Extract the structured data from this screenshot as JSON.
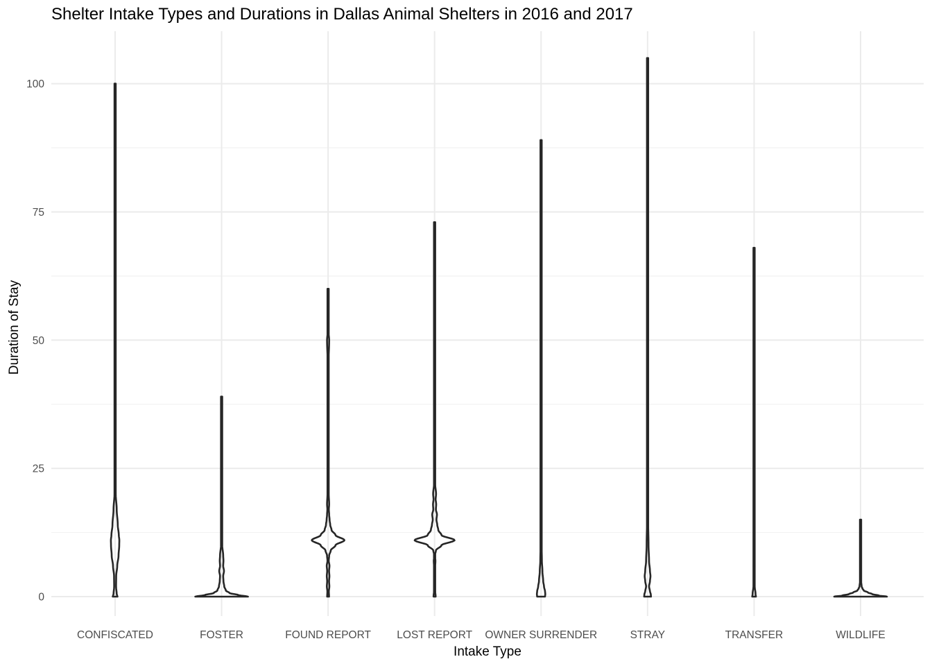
{
  "chart_data": {
    "type": "violin",
    "title": "Shelter Intake Types and Durations in Dallas Animal Shelters in 2016 and 2017",
    "xlabel": "Intake Type",
    "ylabel": "Duration of Stay",
    "ylim": [
      -5,
      110
    ],
    "yticks": [
      0,
      25,
      50,
      75,
      100
    ],
    "grid": true,
    "legend": "none",
    "colors": {
      "outline": "#262626",
      "grid": "#ebebeb",
      "tick_text": "#4d4d4d"
    },
    "categories": [
      "CONFISCATED",
      "FOSTER",
      "FOUND REPORT",
      "LOST REPORT",
      "OWNER SURRENDER",
      "STRAY",
      "TRANSFER",
      "WILDLIFE"
    ],
    "violins": [
      {
        "category": "CONFISCATED",
        "min": 0,
        "max": 100,
        "profile": [
          [
            0,
            0.045
          ],
          [
            0.5,
            0.03
          ],
          [
            2,
            0.018
          ],
          [
            4,
            0.02
          ],
          [
            6,
            0.04
          ],
          [
            8,
            0.065
          ],
          [
            10,
            0.078
          ],
          [
            11,
            0.08
          ],
          [
            12,
            0.07
          ],
          [
            14,
            0.05
          ],
          [
            17,
            0.03
          ],
          [
            20,
            0.012
          ],
          [
            25,
            0.005
          ],
          [
            50,
            0.004
          ],
          [
            75,
            0.003
          ],
          [
            100,
            0.002
          ]
        ]
      },
      {
        "category": "FOSTER",
        "min": 0,
        "max": 39,
        "profile": [
          [
            0,
            0.5
          ],
          [
            0.3,
            0.32
          ],
          [
            0.7,
            0.15
          ],
          [
            1.2,
            0.08
          ],
          [
            2,
            0.05
          ],
          [
            3,
            0.035
          ],
          [
            4,
            0.03
          ],
          [
            5,
            0.045
          ],
          [
            6,
            0.03
          ],
          [
            7,
            0.035
          ],
          [
            8,
            0.03
          ],
          [
            10,
            0.012
          ],
          [
            14,
            0.008
          ],
          [
            20,
            0.004
          ],
          [
            39,
            0.003
          ]
        ]
      },
      {
        "category": "FOUND REPORT",
        "min": 0,
        "max": 60,
        "profile": [
          [
            0,
            0.018
          ],
          [
            1,
            0.014
          ],
          [
            2,
            0.024
          ],
          [
            3,
            0.018
          ],
          [
            4,
            0.025
          ],
          [
            5,
            0.018
          ],
          [
            6,
            0.026
          ],
          [
            7,
            0.012
          ],
          [
            8,
            0.02
          ],
          [
            9,
            0.05
          ],
          [
            10,
            0.14
          ],
          [
            11,
            0.31
          ],
          [
            12,
            0.14
          ],
          [
            13,
            0.065
          ],
          [
            14,
            0.04
          ],
          [
            15,
            0.028
          ],
          [
            16,
            0.02
          ],
          [
            17,
            0.014
          ],
          [
            18,
            0.02
          ],
          [
            20,
            0.012
          ],
          [
            25,
            0.008
          ],
          [
            45,
            0.006
          ],
          [
            50,
            0.02
          ],
          [
            52,
            0.004
          ],
          [
            60,
            0.004
          ]
        ]
      },
      {
        "category": "LOST REPORT",
        "min": 0,
        "max": 73,
        "profile": [
          [
            0,
            0.02
          ],
          [
            1,
            0.012
          ],
          [
            2,
            0.004
          ],
          [
            4,
            0.012
          ],
          [
            5,
            0.004
          ],
          [
            7,
            0.016
          ],
          [
            8,
            0.004
          ],
          [
            9,
            0.025
          ],
          [
            10,
            0.13
          ],
          [
            11,
            0.38
          ],
          [
            12,
            0.13
          ],
          [
            13,
            0.07
          ],
          [
            14,
            0.05
          ],
          [
            15,
            0.035
          ],
          [
            16,
            0.045
          ],
          [
            17,
            0.025
          ],
          [
            18,
            0.03
          ],
          [
            19,
            0.02
          ],
          [
            20,
            0.028
          ],
          [
            22,
            0.01
          ],
          [
            30,
            0.005
          ],
          [
            50,
            0.004
          ],
          [
            73,
            0.003
          ]
        ]
      },
      {
        "category": "OWNER SURRENDER",
        "min": 0,
        "max": 89,
        "profile": [
          [
            0,
            0.075
          ],
          [
            0.5,
            0.08
          ],
          [
            1,
            0.075
          ],
          [
            2,
            0.055
          ],
          [
            3,
            0.04
          ],
          [
            5,
            0.025
          ],
          [
            7,
            0.015
          ],
          [
            10,
            0.01
          ],
          [
            15,
            0.006
          ],
          [
            30,
            0.004
          ],
          [
            60,
            0.003
          ],
          [
            89,
            0.002
          ]
        ]
      },
      {
        "category": "STRAY",
        "min": 0,
        "max": 105,
        "profile": [
          [
            0,
            0.065
          ],
          [
            0.5,
            0.06
          ],
          [
            1,
            0.045
          ],
          [
            2,
            0.028
          ],
          [
            3,
            0.045
          ],
          [
            4,
            0.055
          ],
          [
            5,
            0.045
          ],
          [
            7,
            0.028
          ],
          [
            10,
            0.018
          ],
          [
            15,
            0.01
          ],
          [
            20,
            0.005
          ],
          [
            50,
            0.003
          ],
          [
            105,
            0.002
          ]
        ]
      },
      {
        "category": "TRANSFER",
        "min": 0,
        "max": 68,
        "profile": [
          [
            0,
            0.035
          ],
          [
            0.5,
            0.028
          ],
          [
            2,
            0.012
          ],
          [
            4,
            0.01
          ],
          [
            6,
            0.012
          ],
          [
            8,
            0.006
          ],
          [
            12,
            0.008
          ],
          [
            17,
            0.01
          ],
          [
            22,
            0.007
          ],
          [
            27,
            0.005
          ],
          [
            40,
            0.003
          ],
          [
            68,
            0.002
          ]
        ]
      },
      {
        "category": "WILDLIFE",
        "min": 0,
        "max": 15,
        "profile": [
          [
            0,
            0.5
          ],
          [
            0.2,
            0.35
          ],
          [
            0.5,
            0.22
          ],
          [
            0.8,
            0.14
          ],
          [
            1.2,
            0.06
          ],
          [
            1.6,
            0.035
          ],
          [
            2,
            0.02
          ],
          [
            3,
            0.01
          ],
          [
            5,
            0.006
          ],
          [
            10,
            0.004
          ],
          [
            15,
            0.003
          ]
        ]
      }
    ]
  }
}
